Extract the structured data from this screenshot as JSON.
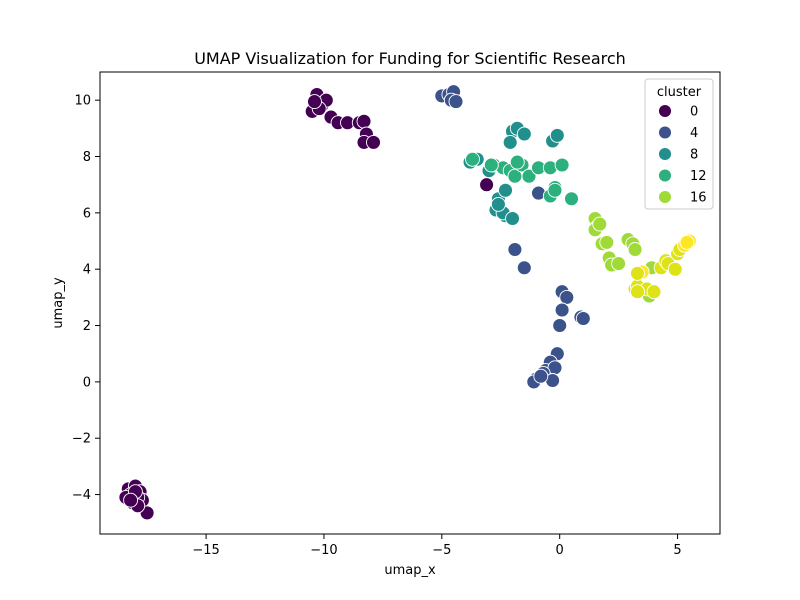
{
  "chart_data": {
    "type": "scatter",
    "title": "UMAP Visualization for Funding for Scientific Research",
    "xlabel": "umap_x",
    "ylabel": "umap_y",
    "xlim": [
      -19.5,
      6.8
    ],
    "ylim": [
      -5.4,
      11.0
    ],
    "xticks": [
      -15,
      -10,
      -5,
      0,
      5
    ],
    "xtick_labels": [
      "−15",
      "−10",
      "−5",
      "0",
      "5"
    ],
    "yticks": [
      -4,
      -2,
      0,
      2,
      4,
      6,
      8,
      10
    ],
    "ytick_labels": [
      "−4",
      "−2",
      "0",
      "2",
      "4",
      "6",
      "8",
      "10"
    ],
    "grid": false,
    "legend": {
      "title": "cluster",
      "placement": "top-right",
      "entries": [
        {
          "label": "0",
          "color": "#440154"
        },
        {
          "label": "4",
          "color": "#3b528b"
        },
        {
          "label": "8",
          "color": "#21908d"
        },
        {
          "label": "12",
          "color": "#2cb17e"
        },
        {
          "label": "16",
          "color": "#a0da39"
        }
      ]
    },
    "points": [
      {
        "x": -18.3,
        "y": -3.8,
        "c": "#440154"
      },
      {
        "x": -18.0,
        "y": -3.7,
        "c": "#440154"
      },
      {
        "x": -17.8,
        "y": -3.9,
        "c": "#440154"
      },
      {
        "x": -18.2,
        "y": -4.0,
        "c": "#440154"
      },
      {
        "x": -18.1,
        "y": -4.3,
        "c": "#440154"
      },
      {
        "x": -17.7,
        "y": -4.2,
        "c": "#440154"
      },
      {
        "x": -17.9,
        "y": -4.1,
        "c": "#440154"
      },
      {
        "x": -18.4,
        "y": -4.1,
        "c": "#440154"
      },
      {
        "x": -17.5,
        "y": -4.65,
        "c": "#440154"
      },
      {
        "x": -18.0,
        "y": -3.9,
        "c": "#440154"
      },
      {
        "x": -17.9,
        "y": -4.4,
        "c": "#440154"
      },
      {
        "x": -18.2,
        "y": -4.2,
        "c": "#440154"
      },
      {
        "x": -10.5,
        "y": 9.6,
        "c": "#440154"
      },
      {
        "x": -10.3,
        "y": 10.2,
        "c": "#440154"
      },
      {
        "x": -10.1,
        "y": 9.8,
        "c": "#440154"
      },
      {
        "x": -9.9,
        "y": 10.0,
        "c": "#440154"
      },
      {
        "x": -10.2,
        "y": 9.7,
        "c": "#440154"
      },
      {
        "x": -9.7,
        "y": 9.4,
        "c": "#440154"
      },
      {
        "x": -9.4,
        "y": 9.2,
        "c": "#440154"
      },
      {
        "x": -9.0,
        "y": 9.2,
        "c": "#440154"
      },
      {
        "x": -8.5,
        "y": 9.2,
        "c": "#440154"
      },
      {
        "x": -8.3,
        "y": 9.25,
        "c": "#440154"
      },
      {
        "x": -8.2,
        "y": 8.8,
        "c": "#440154"
      },
      {
        "x": -8.3,
        "y": 8.5,
        "c": "#440154"
      },
      {
        "x": -7.9,
        "y": 8.5,
        "c": "#440154"
      },
      {
        "x": -10.4,
        "y": 9.95,
        "c": "#440154"
      },
      {
        "x": -3.1,
        "y": 7.0,
        "c": "#440154"
      },
      {
        "x": -5.0,
        "y": 10.15,
        "c": "#3b528b"
      },
      {
        "x": -4.7,
        "y": 10.2,
        "c": "#3b528b"
      },
      {
        "x": -4.5,
        "y": 10.3,
        "c": "#3b528b"
      },
      {
        "x": -4.6,
        "y": 10.0,
        "c": "#3b528b"
      },
      {
        "x": -4.4,
        "y": 9.95,
        "c": "#3b528b"
      },
      {
        "x": -1.9,
        "y": 4.7,
        "c": "#3b528b"
      },
      {
        "x": -1.5,
        "y": 4.05,
        "c": "#3b528b"
      },
      {
        "x": -0.9,
        "y": 6.7,
        "c": "#3b528b"
      },
      {
        "x": 0.1,
        "y": 3.2,
        "c": "#3b528b"
      },
      {
        "x": 0.3,
        "y": 3.0,
        "c": "#3b528b"
      },
      {
        "x": 0.1,
        "y": 2.55,
        "c": "#3b528b"
      },
      {
        "x": 0.0,
        "y": 2.0,
        "c": "#3b528b"
      },
      {
        "x": 0.9,
        "y": 2.3,
        "c": "#3b528b"
      },
      {
        "x": 1.0,
        "y": 2.25,
        "c": "#3b528b"
      },
      {
        "x": -0.1,
        "y": 1.0,
        "c": "#3b528b"
      },
      {
        "x": -0.4,
        "y": 0.7,
        "c": "#3b528b"
      },
      {
        "x": -0.6,
        "y": 0.4,
        "c": "#3b528b"
      },
      {
        "x": -0.2,
        "y": 0.5,
        "c": "#3b528b"
      },
      {
        "x": -0.7,
        "y": 0.3,
        "c": "#3b528b"
      },
      {
        "x": -1.0,
        "y": 0.1,
        "c": "#3b528b"
      },
      {
        "x": -1.1,
        "y": 0.0,
        "c": "#3b528b"
      },
      {
        "x": -0.3,
        "y": 0.05,
        "c": "#3b528b"
      },
      {
        "x": -0.8,
        "y": 0.2,
        "c": "#3b528b"
      },
      {
        "x": -2.3,
        "y": 5.9,
        "c": "#21908d"
      },
      {
        "x": -2.7,
        "y": 6.1,
        "c": "#21908d"
      },
      {
        "x": -2.4,
        "y": 6.0,
        "c": "#21908d"
      },
      {
        "x": -2.0,
        "y": 5.8,
        "c": "#21908d"
      },
      {
        "x": -2.6,
        "y": 6.5,
        "c": "#21908d"
      },
      {
        "x": -2.3,
        "y": 6.8,
        "c": "#21908d"
      },
      {
        "x": -2.6,
        "y": 6.3,
        "c": "#21908d"
      },
      {
        "x": -3.0,
        "y": 7.5,
        "c": "#21908d"
      },
      {
        "x": -2.8,
        "y": 7.7,
        "c": "#21908d"
      },
      {
        "x": -3.5,
        "y": 7.9,
        "c": "#21908d"
      },
      {
        "x": -3.8,
        "y": 7.8,
        "c": "#21908d"
      },
      {
        "x": -2.0,
        "y": 8.9,
        "c": "#21908d"
      },
      {
        "x": -1.8,
        "y": 9.0,
        "c": "#21908d"
      },
      {
        "x": -1.5,
        "y": 8.8,
        "c": "#21908d"
      },
      {
        "x": -2.1,
        "y": 8.5,
        "c": "#21908d"
      },
      {
        "x": -0.3,
        "y": 8.55,
        "c": "#21908d"
      },
      {
        "x": -0.1,
        "y": 8.75,
        "c": "#21908d"
      },
      {
        "x": -2.4,
        "y": 7.6,
        "c": "#2cb17e"
      },
      {
        "x": -2.1,
        "y": 7.5,
        "c": "#2cb17e"
      },
      {
        "x": -1.9,
        "y": 7.3,
        "c": "#2cb17e"
      },
      {
        "x": -1.6,
        "y": 7.7,
        "c": "#2cb17e"
      },
      {
        "x": -1.8,
        "y": 7.8,
        "c": "#2cb17e"
      },
      {
        "x": -1.3,
        "y": 7.3,
        "c": "#2cb17e"
      },
      {
        "x": -0.9,
        "y": 7.6,
        "c": "#2cb17e"
      },
      {
        "x": -0.4,
        "y": 7.6,
        "c": "#2cb17e"
      },
      {
        "x": 0.1,
        "y": 7.7,
        "c": "#2cb17e"
      },
      {
        "x": -0.2,
        "y": 6.9,
        "c": "#2cb17e"
      },
      {
        "x": -0.4,
        "y": 6.6,
        "c": "#2cb17e"
      },
      {
        "x": 0.5,
        "y": 6.5,
        "c": "#2cb17e"
      },
      {
        "x": -0.2,
        "y": 6.8,
        "c": "#2cb17e"
      },
      {
        "x": -3.7,
        "y": 7.9,
        "c": "#2cb17e"
      },
      {
        "x": -2.9,
        "y": 7.7,
        "c": "#2cb17e"
      },
      {
        "x": 1.5,
        "y": 5.8,
        "c": "#a0da39"
      },
      {
        "x": 1.6,
        "y": 5.5,
        "c": "#a0da39"
      },
      {
        "x": 1.5,
        "y": 5.4,
        "c": "#a0da39"
      },
      {
        "x": 1.7,
        "y": 5.6,
        "c": "#a0da39"
      },
      {
        "x": 1.8,
        "y": 4.9,
        "c": "#a0da39"
      },
      {
        "x": 2.0,
        "y": 4.95,
        "c": "#a0da39"
      },
      {
        "x": 2.1,
        "y": 4.4,
        "c": "#a0da39"
      },
      {
        "x": 2.2,
        "y": 4.15,
        "c": "#a0da39"
      },
      {
        "x": 2.5,
        "y": 4.2,
        "c": "#a0da39"
      },
      {
        "x": 2.9,
        "y": 5.05,
        "c": "#a0da39"
      },
      {
        "x": 3.1,
        "y": 4.9,
        "c": "#a0da39"
      },
      {
        "x": 3.2,
        "y": 4.7,
        "c": "#a0da39"
      },
      {
        "x": 3.9,
        "y": 4.05,
        "c": "#a0da39"
      },
      {
        "x": 3.8,
        "y": 3.05,
        "c": "#a0da39"
      },
      {
        "x": 3.2,
        "y": 3.3,
        "c": "#dde318"
      },
      {
        "x": 3.3,
        "y": 3.4,
        "c": "#dde318"
      },
      {
        "x": 3.5,
        "y": 3.9,
        "c": "#fde725"
      },
      {
        "x": 3.3,
        "y": 3.85,
        "c": "#dde318"
      },
      {
        "x": 3.7,
        "y": 3.3,
        "c": "#dde318"
      },
      {
        "x": 4.0,
        "y": 3.2,
        "c": "#dde318"
      },
      {
        "x": 4.3,
        "y": 4.05,
        "c": "#dde318"
      },
      {
        "x": 4.5,
        "y": 4.3,
        "c": "#dde318"
      },
      {
        "x": 4.6,
        "y": 4.2,
        "c": "#dde318"
      },
      {
        "x": 4.9,
        "y": 4.0,
        "c": "#dde318"
      },
      {
        "x": 5.0,
        "y": 4.55,
        "c": "#dde318"
      },
      {
        "x": 5.1,
        "y": 4.7,
        "c": "#dde318"
      },
      {
        "x": 5.3,
        "y": 4.85,
        "c": "#fde725"
      },
      {
        "x": 5.5,
        "y": 5.0,
        "c": "#fde725"
      },
      {
        "x": 5.4,
        "y": 4.95,
        "c": "#fde725"
      },
      {
        "x": 3.3,
        "y": 3.2,
        "c": "#dde318"
      }
    ]
  }
}
